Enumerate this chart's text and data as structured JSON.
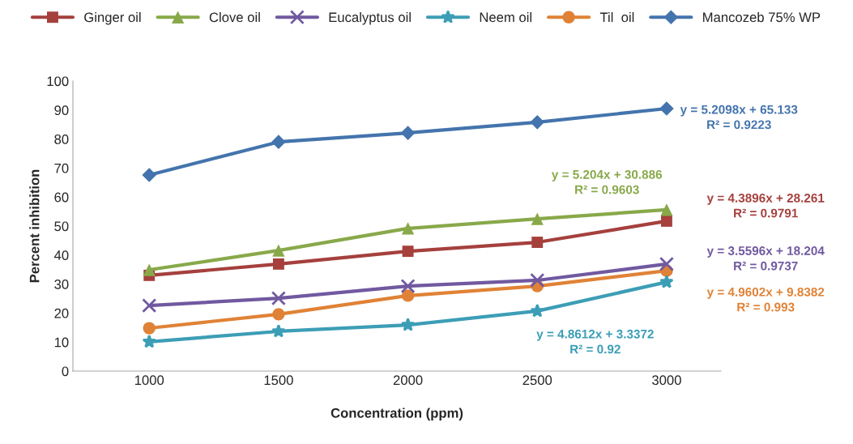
{
  "chart_data": {
    "type": "line",
    "xlabel": "Concentration (ppm)",
    "ylabel": "Percent inhibition",
    "categories": [
      "1000",
      "1500",
      "2000",
      "2500",
      "3000"
    ],
    "ylim": [
      0,
      100
    ],
    "yticks": [
      0,
      10,
      20,
      30,
      40,
      50,
      60,
      70,
      80,
      90,
      100
    ],
    "grid": false,
    "legend": "top",
    "series": [
      {
        "name": "Ginger oil",
        "color": "#a5403d",
        "marker": "square",
        "values": [
          33.0,
          36.9,
          41.3,
          44.4,
          51.7
        ]
      },
      {
        "name": "Clove oil",
        "color": "#88a94a",
        "marker": "triangle",
        "values": [
          34.9,
          41.6,
          49.2,
          52.5,
          55.6
        ]
      },
      {
        "name": "Eucalyptus oil",
        "color": "#7159a0",
        "marker": "cross",
        "values": [
          22.6,
          25.1,
          29.3,
          31.3,
          36.9
        ]
      },
      {
        "name": "Neem oil",
        "color": "#3c9eb6",
        "marker": "star",
        "values": [
          10.1,
          13.7,
          15.9,
          20.7,
          30.7
        ]
      },
      {
        "name": "Til  oil",
        "color": "#e08236",
        "marker": "circle",
        "values": [
          14.8,
          19.6,
          26.0,
          29.3,
          34.6
        ]
      },
      {
        "name": "Mancozeb 75% WP",
        "color": "#4474ad",
        "marker": "diamond",
        "values": [
          67.6,
          79.0,
          82.1,
          85.8,
          90.5
        ]
      }
    ],
    "annotations": [
      "y = 4.3896x + 28.261\nR² = 0.9791",
      "y = 5.204x + 30.886\nR² = 0.9603",
      "y = 3.5596x + 18.204\nR² = 0.9737",
      "y = 4.8612x + 3.3372\nR² = 0.92",
      "y = 4.9602x + 9.8382\nR² = 0.993",
      "y = 5.2098x + 65.133\nR² = 0.9223"
    ]
  }
}
